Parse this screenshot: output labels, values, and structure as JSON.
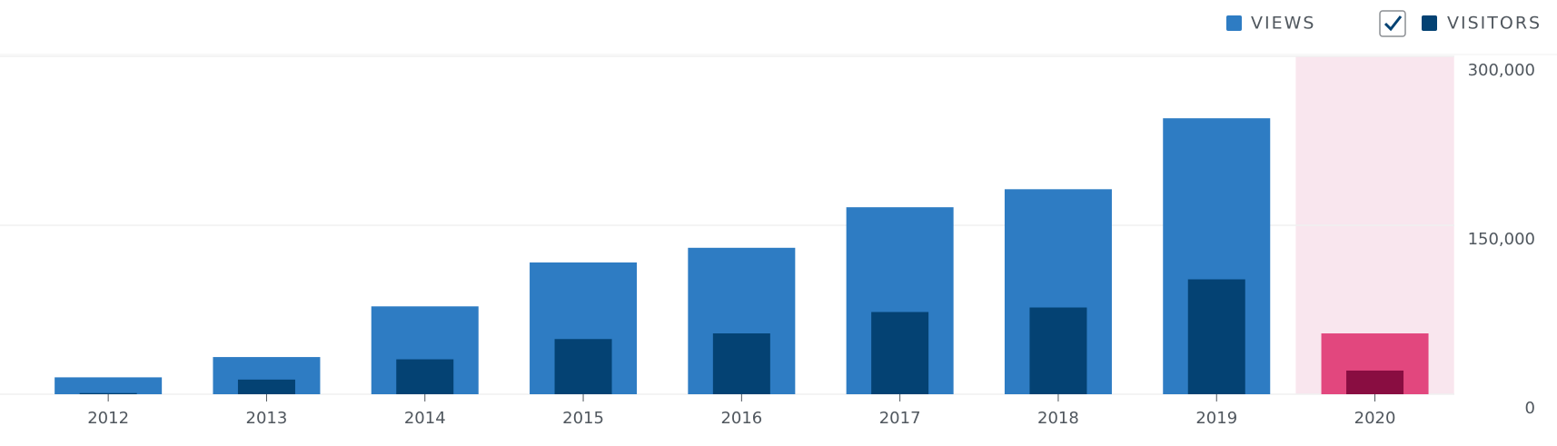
{
  "chart_data": {
    "type": "bar",
    "categories": [
      "2012",
      "2013",
      "2014",
      "2015",
      "2016",
      "2017",
      "2018",
      "2019",
      "2020"
    ],
    "series": [
      {
        "name": "VIEWS",
        "color": "#2e7cc3",
        "highlight_color": "#e2477e",
        "values": [
          15000,
          33000,
          78000,
          117000,
          130000,
          166000,
          182000,
          245000,
          54000
        ]
      },
      {
        "name": "VISITORS",
        "color": "#044273",
        "highlight_color": "#890d41",
        "values": [
          1000,
          13000,
          31000,
          49000,
          54000,
          73000,
          77000,
          102000,
          21000
        ]
      }
    ],
    "highlight_index": 8,
    "highlight_band_color": "#f9e6ee",
    "ylim": [
      0,
      300000
    ],
    "yticks": [
      0,
      {
        "value": 150000,
        "label": "150,000"
      },
      {
        "value": 300000,
        "label": "300,000"
      }
    ],
    "grid": true
  }
}
